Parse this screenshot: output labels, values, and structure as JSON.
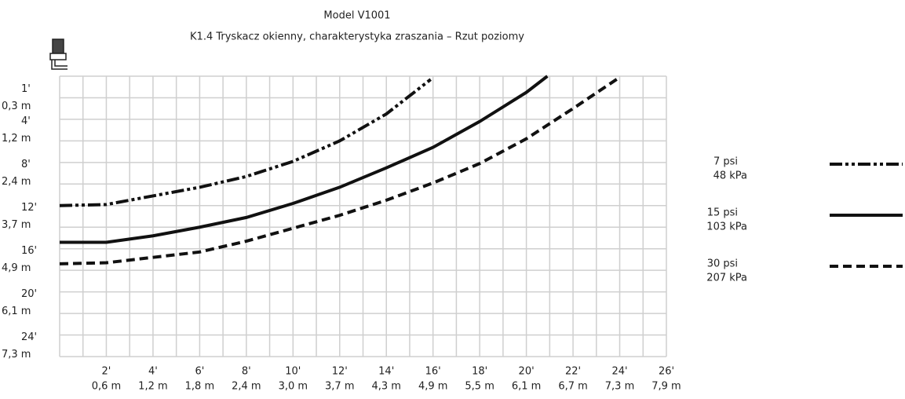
{
  "chart_data": {
    "type": "line",
    "title": "Model V1001",
    "subtitle": "K1.4 Tryskacz okienny, charakterystyka zraszania – Rzut poziomy",
    "xlim": [
      0,
      26
    ],
    "ylim": [
      -1,
      25
    ],
    "y_inverted": true,
    "grid": true,
    "grid_step": {
      "x": 1,
      "y": 2
    },
    "xticks": [
      {
        "value": 2,
        "label": "2'"
      },
      {
        "value": 4,
        "label": "4'"
      },
      {
        "value": 6,
        "label": "6'"
      },
      {
        "value": 8,
        "label": "8'"
      },
      {
        "value": 10,
        "label": "10'"
      },
      {
        "value": 12,
        "label": "12'"
      },
      {
        "value": 14,
        "label": "14'"
      },
      {
        "value": 16,
        "label": "16'"
      },
      {
        "value": 18,
        "label": "18'"
      },
      {
        "value": 20,
        "label": "20'"
      },
      {
        "value": 22,
        "label": "22'"
      },
      {
        "value": 24,
        "label": "24'"
      },
      {
        "value": 26,
        "label": "26'"
      }
    ],
    "xtick_metric": [
      "0,6 m",
      "1,2 m",
      "1,8 m",
      "2,4 m",
      "3,0 m",
      "3,7 m",
      "4,3 m",
      "4,9 m",
      "5,5 m",
      "6,1 m",
      "6,7 m",
      "7,3 m",
      "7,9 m"
    ],
    "yticks": [
      {
        "value": 1,
        "label": "1'"
      },
      {
        "value": 4,
        "label": "4'"
      },
      {
        "value": 8,
        "label": "8'"
      },
      {
        "value": 12,
        "label": "12'"
      },
      {
        "value": 16,
        "label": "16'"
      },
      {
        "value": 20,
        "label": "20'"
      },
      {
        "value": 24,
        "label": "24'"
      }
    ],
    "ytick_metric": [
      "0,3 m",
      "1,2 m",
      "2,4 m",
      "3,7 m",
      "4,9 m",
      "6,1 m",
      "7,3 m"
    ],
    "legend": "right",
    "series": [
      {
        "name": "7 psi",
        "name_metric": "48 kPa",
        "color": "#111111",
        "dash": "dashdotdot",
        "x": [
          0,
          2,
          4,
          6,
          8,
          10,
          12,
          14,
          15.9
        ],
        "values": [
          11.0,
          10.9,
          10.1,
          9.3,
          8.3,
          6.9,
          5.0,
          2.5,
          -0.7
        ]
      },
      {
        "name": "15 psi",
        "name_metric": "103 kPa",
        "color": "#111111",
        "dash": "solid",
        "x": [
          0,
          2,
          4,
          6,
          8,
          10,
          12,
          14,
          16,
          18,
          20,
          20.9
        ],
        "values": [
          14.4,
          14.4,
          13.8,
          13.0,
          12.1,
          10.8,
          9.3,
          7.5,
          5.6,
          3.2,
          0.5,
          -1.0
        ]
      },
      {
        "name": "30 psi",
        "name_metric": "207 kPa",
        "color": "#111111",
        "dash": "dashed",
        "x": [
          0,
          2,
          4,
          6,
          8,
          10,
          12,
          14,
          16,
          18,
          20,
          22,
          24
        ],
        "values": [
          16.4,
          16.3,
          15.8,
          15.3,
          14.3,
          13.1,
          11.9,
          10.5,
          8.9,
          7.1,
          4.8,
          2.0,
          -0.9
        ]
      }
    ]
  }
}
